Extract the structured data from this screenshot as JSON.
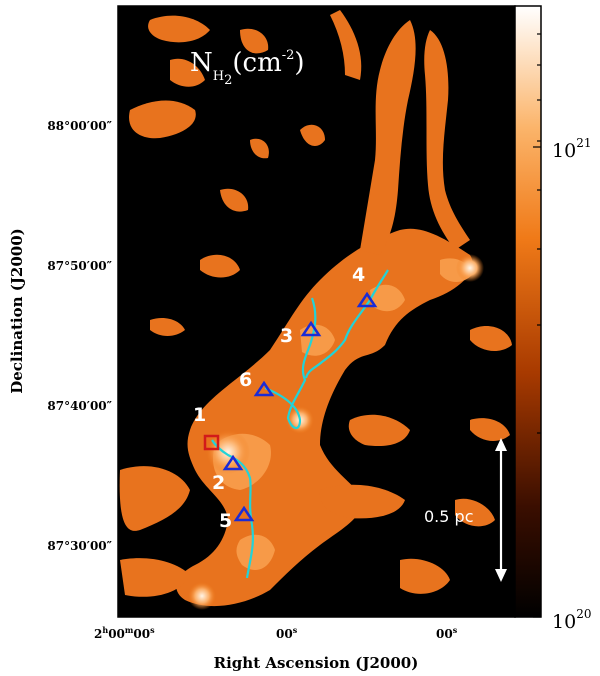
{
  "map_title": {
    "main": "N",
    "sub": "H",
    "sub2": "2",
    "unit": "(cm",
    "exp": "-2",
    "close": ")"
  },
  "xaxis": {
    "title": "Right Ascension (J2000)",
    "ticks": [
      "2h00m00s",
      "00s",
      "00s"
    ],
    "tick_first": {
      "h": "2",
      "hs": "h",
      "m": "00",
      "ms": "m",
      "s": "00",
      "ss": "s"
    },
    "tick_sec": {
      "v": "00",
      "s": "s"
    }
  },
  "yaxis": {
    "title": "Declination (J2000)",
    "ticks": [
      "88°00′00″",
      "87°50′00″",
      "87°40′00″",
      "87°30′00″"
    ]
  },
  "colorbar": {
    "max_label": {
      "base": "10",
      "exp": "21"
    },
    "min_label": {
      "base": "10",
      "exp": "20"
    },
    "colors": {
      "low": "#000000",
      "mid": "#e05a00",
      "high": "#ffffff"
    }
  },
  "scale_bar": {
    "label": "0.5 pc"
  },
  "sources": [
    {
      "id": "1",
      "marker": "square"
    },
    {
      "id": "2",
      "marker": "triangle"
    },
    {
      "id": "3",
      "marker": "triangle"
    },
    {
      "id": "4",
      "marker": "triangle"
    },
    {
      "id": "5",
      "marker": "triangle"
    },
    {
      "id": "6",
      "marker": "triangle"
    }
  ],
  "colors": {
    "filament": "#22d3d8",
    "triangle": "#1a2bd6",
    "square": "#d21a1a"
  }
}
